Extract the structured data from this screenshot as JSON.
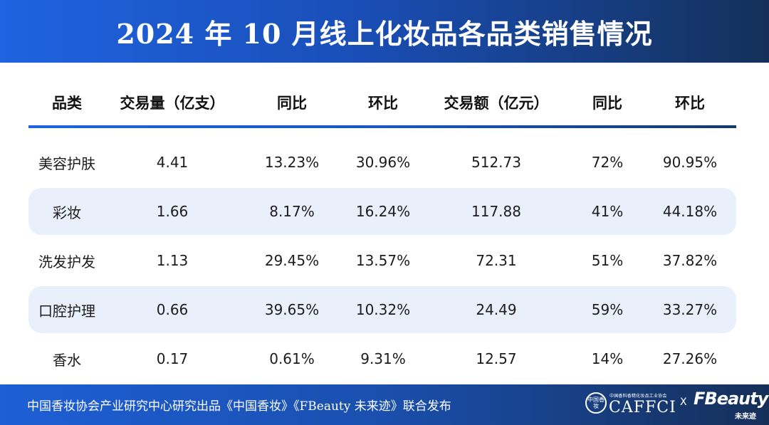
{
  "header": {
    "title": "2024 年 10 月线上化妆品各品类销售情况"
  },
  "table": {
    "columns": [
      "品类",
      "交易量（亿支）",
      "同比",
      "环比",
      "交易额（亿元）",
      "同比",
      "环比"
    ],
    "rows": [
      [
        "美容护肤",
        "4.41",
        "13.23%",
        "30.96%",
        "512.73",
        "72%",
        "90.95%"
      ],
      [
        "彩妆",
        "1.66",
        "8.17%",
        "16.24%",
        "117.88",
        "41%",
        "44.18%"
      ],
      [
        "洗发护发",
        "1.13",
        "29.45%",
        "13.57%",
        "72.31",
        "51%",
        "37.82%"
      ],
      [
        "口腔护理",
        "0.66",
        "39.65%",
        "10.32%",
        "24.49",
        "59%",
        "33.27%"
      ],
      [
        "香水",
        "0.17",
        "0.61%",
        "9.31%",
        "12.57",
        "14%",
        "27.26%"
      ]
    ]
  },
  "footer": {
    "text": "中国香妆协会产业研究中心研究出品《中国香妆》《FBeauty 未来迹》联合发布",
    "logo_caffci": {
      "seal": "中国香妆",
      "small": "中国香料香精化妆品工业协会",
      "big": "CAFFCI"
    },
    "separator": "X",
    "logo_fbeauty": {
      "big": "FBeauty",
      "small": "未来迹"
    }
  },
  "colors": {
    "header_gradient_start": "#1f63e0",
    "header_gradient_end": "#14305a",
    "row_highlight": "#eaf0fb",
    "rule": "#1f63e0"
  }
}
